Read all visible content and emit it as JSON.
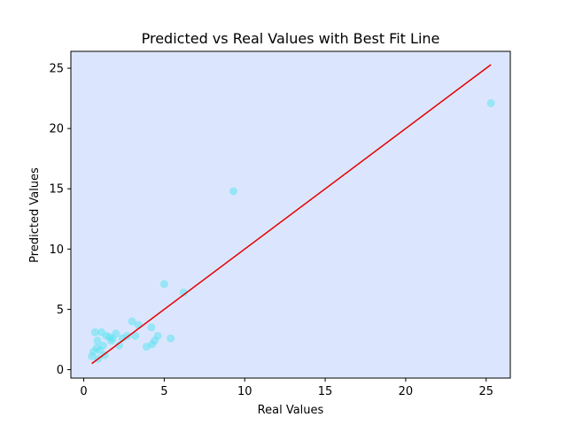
{
  "chart_data": {
    "type": "scatter",
    "title": "Predicted vs Real Values with Best Fit Line",
    "xlabel": "Real Values",
    "ylabel": "Predicted Values",
    "xlim": [
      -0.8,
      26.5
    ],
    "ylim": [
      -0.7,
      26.4
    ],
    "x_ticks": [
      0,
      5,
      10,
      15,
      20,
      25
    ],
    "y_ticks": [
      0,
      5,
      10,
      15,
      20,
      25
    ],
    "x_tick_labels": [
      "0",
      "5",
      "10",
      "15",
      "20",
      "25"
    ],
    "y_tick_labels": [
      "0",
      "5",
      "10",
      "15",
      "20",
      "25"
    ],
    "grid": false,
    "legend": false,
    "colors": {
      "plot_background": "#dbe6fe",
      "points": "#5ee3ee",
      "best_fit_line": "#e60000"
    },
    "series": [
      {
        "type": "scatter",
        "points": [
          {
            "x": 0.5,
            "y": 1.1
          },
          {
            "x": 0.6,
            "y": 1.5
          },
          {
            "x": 0.7,
            "y": 3.1
          },
          {
            "x": 0.8,
            "y": 1.8
          },
          {
            "x": 0.85,
            "y": 2.4
          },
          {
            "x": 0.9,
            "y": 0.9
          },
          {
            "x": 1.0,
            "y": 1.6
          },
          {
            "x": 1.1,
            "y": 3.1
          },
          {
            "x": 1.2,
            "y": 2.0
          },
          {
            "x": 1.3,
            "y": 1.2
          },
          {
            "x": 1.4,
            "y": 2.8
          },
          {
            "x": 1.6,
            "y": 2.7
          },
          {
            "x": 1.7,
            "y": 2.4
          },
          {
            "x": 1.8,
            "y": 2.6
          },
          {
            "x": 2.0,
            "y": 3.0
          },
          {
            "x": 2.2,
            "y": 2.0
          },
          {
            "x": 2.4,
            "y": 2.6
          },
          {
            "x": 2.7,
            "y": 2.8
          },
          {
            "x": 3.0,
            "y": 4.0
          },
          {
            "x": 3.2,
            "y": 2.8
          },
          {
            "x": 3.4,
            "y": 3.7
          },
          {
            "x": 3.9,
            "y": 1.9
          },
          {
            "x": 4.2,
            "y": 3.5
          },
          {
            "x": 4.25,
            "y": 2.1
          },
          {
            "x": 4.4,
            "y": 2.4
          },
          {
            "x": 4.6,
            "y": 2.8
          },
          {
            "x": 5.0,
            "y": 7.1
          },
          {
            "x": 5.4,
            "y": 2.6
          },
          {
            "x": 6.2,
            "y": 6.4
          },
          {
            "x": 9.3,
            "y": 14.8
          },
          {
            "x": 25.3,
            "y": 22.1
          }
        ]
      },
      {
        "type": "line",
        "points": [
          {
            "x": 0.5,
            "y": 0.5
          },
          {
            "x": 25.3,
            "y": 25.3
          }
        ]
      }
    ]
  }
}
